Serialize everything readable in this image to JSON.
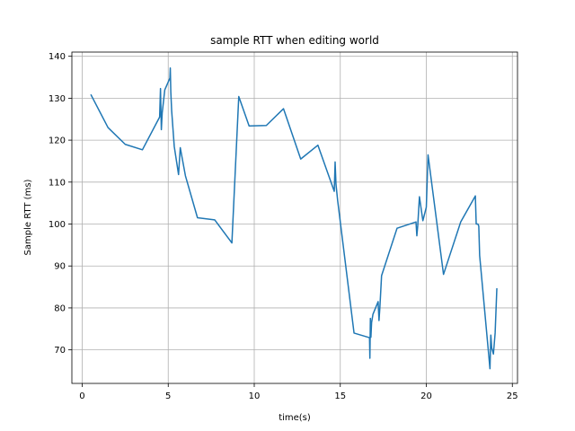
{
  "chart_data": {
    "type": "line",
    "title": "sample RTT when editing world",
    "xlabel": "time(s)",
    "ylabel": "Sample RTT (ms)",
    "xlim": [
      -0.6,
      25.3
    ],
    "ylim": [
      62,
      141
    ],
    "xticks": [
      0,
      5,
      10,
      15,
      20,
      25
    ],
    "yticks": [
      70,
      80,
      90,
      100,
      110,
      120,
      130,
      140
    ],
    "grid": true,
    "line_color": "#1f77b4",
    "series": [
      {
        "x": [
          0.5,
          1.5,
          2.5,
          3.5,
          4.5,
          4.55,
          4.6,
          4.65,
          4.8,
          5.1,
          5.12,
          5.15,
          5.2,
          5.35,
          5.6,
          5.7,
          6.0,
          6.7,
          7.7,
          8.7,
          9.1,
          9.7,
          10.7,
          11.7,
          12.7,
          13.7,
          14.65,
          14.7,
          14.75,
          14.85,
          15.8,
          16.7,
          16.72,
          16.75,
          16.78,
          16.82,
          16.9,
          17.2,
          17.25,
          17.3,
          17.4,
          18.3,
          19.4,
          19.45,
          19.5,
          19.6,
          19.8,
          20.0,
          20.1,
          21.0,
          22.0,
          22.85,
          22.9,
          23.0,
          23.05,
          23.1,
          23.7,
          23.75,
          23.8,
          23.9,
          24.0,
          24.1
        ],
        "y": [
          130.9,
          123,
          119,
          117.7,
          125.5,
          132.3,
          122.5,
          126.5,
          132,
          134.8,
          137.2,
          131.5,
          127,
          118.5,
          111.8,
          118.2,
          111.5,
          101.5,
          101,
          95.5,
          130.4,
          123.4,
          123.5,
          127.5,
          115.5,
          118.8,
          107.8,
          114.8,
          109.5,
          105.5,
          74,
          72.9,
          68,
          77.5,
          73,
          76.5,
          78.5,
          81.5,
          77,
          80,
          87.7,
          99,
          100.5,
          97.2,
          99.5,
          106.5,
          100.8,
          104,
          116.5,
          88,
          100.5,
          106.7,
          100,
          100,
          99.5,
          92.5,
          65.5,
          73.5,
          70.5,
          69,
          74,
          84.7
        ]
      }
    ]
  }
}
